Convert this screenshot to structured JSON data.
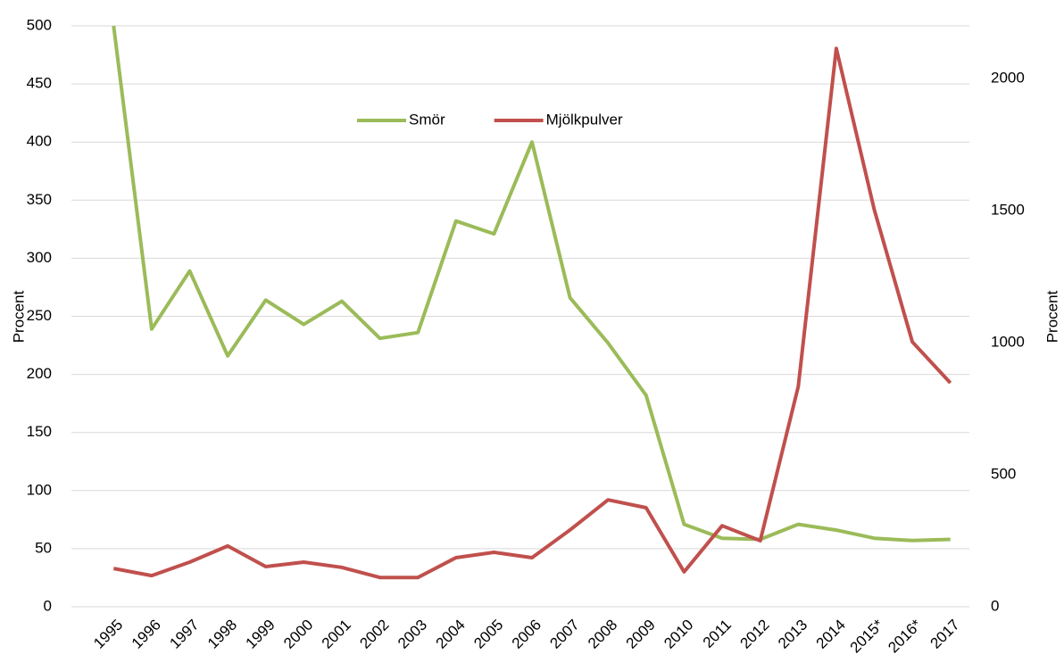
{
  "chart_data": {
    "type": "line",
    "categories": [
      "1995",
      "1996",
      "1997",
      "1998",
      "1999",
      "2000",
      "2001",
      "2002",
      "2003",
      "2004",
      "2005",
      "2006",
      "2007",
      "2008",
      "2009",
      "2010",
      "2011",
      "2012",
      "2013",
      "2014",
      "2015*",
      "2016*",
      "2017"
    ],
    "series": [
      {
        "name": "Smör",
        "color": "#9bbb59",
        "values": [
          500,
          239,
          289,
          216,
          264,
          243,
          263,
          231,
          236,
          332,
          321,
          400,
          266,
          227,
          182,
          71,
          59,
          58,
          71,
          66,
          59,
          57,
          58
        ]
      },
      {
        "name": "Mjölkpulver",
        "color": "#c0504d",
        "axis": "y2",
        "values": [
          145,
          118,
          169,
          230,
          152,
          169,
          149,
          111,
          111,
          186,
          206,
          186,
          291,
          405,
          375,
          132,
          307,
          250,
          834,
          2115,
          1503,
          1003,
          848
        ]
      }
    ],
    "ylabel": "Procent",
    "y2label": "Procent",
    "ylim": [
      0,
      500
    ],
    "yticks": [
      0,
      50,
      100,
      150,
      200,
      250,
      300,
      350,
      400,
      450,
      500
    ],
    "y2lim": [
      0,
      2200
    ],
    "y2ticks": [
      0,
      500,
      1000,
      1500,
      2000
    ],
    "grid": true,
    "legend": "top"
  }
}
